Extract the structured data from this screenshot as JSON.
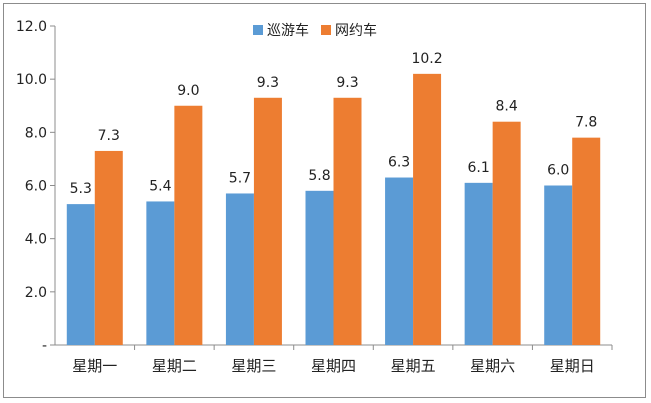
{
  "chart_data": {
    "type": "bar",
    "categories": [
      "星期一",
      "星期二",
      "星期三",
      "星期四",
      "星期五",
      "星期六",
      "星期日"
    ],
    "series": [
      {
        "name": "巡游车",
        "color": "#5b9bd5",
        "values": [
          5.3,
          5.4,
          5.7,
          5.8,
          6.3,
          6.1,
          6.0
        ]
      },
      {
        "name": "网约车",
        "color": "#ed7d31",
        "values": [
          7.3,
          9.0,
          9.3,
          9.3,
          10.2,
          8.4,
          7.8
        ]
      }
    ],
    "yticks": [
      "-",
      "2.0",
      "4.0",
      "6.0",
      "8.0",
      "10.0",
      "12.0"
    ],
    "ylim": [
      0,
      12
    ],
    "legend": "top-center",
    "grid": false,
    "data_labels": true
  }
}
